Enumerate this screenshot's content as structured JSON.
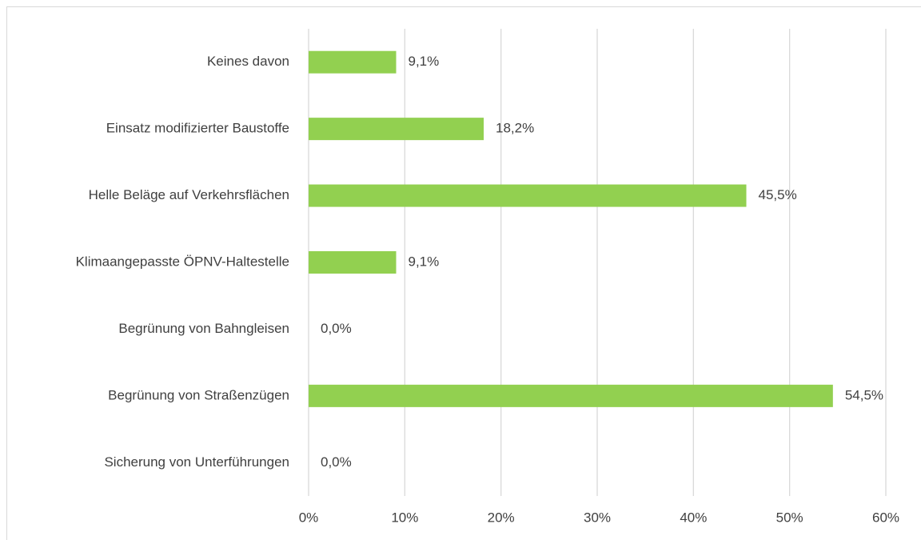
{
  "chart_data": {
    "type": "bar",
    "orientation": "horizontal",
    "categories": [
      "Keines davon",
      "Einsatz modifizierter Baustoffe",
      "Helle Beläge auf Verkehrsflächen",
      "Klimaangepasste ÖPNV-Haltestelle",
      "Begrünung von Bahngleisen",
      "Begrünung von Straßenzügen",
      "Sicherung von Unterführungen"
    ],
    "values": [
      9.1,
      18.2,
      45.5,
      9.1,
      0,
      54.5,
      0
    ],
    "value_labels": [
      "9,1%",
      "18,2%",
      "45,5%",
      "9,1%",
      "0,0%",
      "54,5%",
      "0,0%"
    ],
    "color": "#92d050",
    "xlim": [
      0,
      60
    ],
    "xticks": [
      {
        "value": 0,
        "label": "0%"
      },
      {
        "value": 10,
        "label": "10%"
      },
      {
        "value": 20,
        "label": "20%"
      },
      {
        "value": 30,
        "label": "30%"
      },
      {
        "value": 40,
        "label": "40%"
      },
      {
        "value": 50,
        "label": "50%"
      },
      {
        "value": 60,
        "label": "60%"
      }
    ],
    "grid": true
  }
}
